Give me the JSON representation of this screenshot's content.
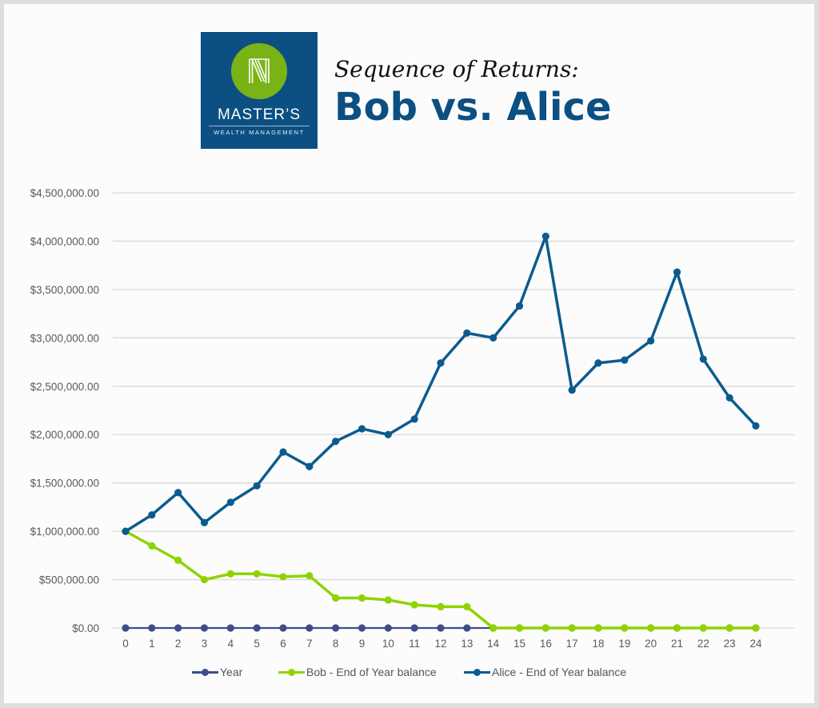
{
  "logo": {
    "name": "MASTER’S",
    "tagline": "WEALTH MANAGEMENT",
    "colors": {
      "background": "#0c4f82",
      "circle": "#7ab317"
    }
  },
  "header": {
    "subtitle": "Sequence of Returns:",
    "title": "Bob vs. Alice"
  },
  "chart_data": {
    "type": "line",
    "title": "Sequence of Returns: Bob vs. Alice",
    "xlabel": "",
    "ylabel": "",
    "x": [
      0,
      1,
      2,
      3,
      4,
      5,
      6,
      7,
      8,
      9,
      10,
      11,
      12,
      13,
      14,
      15,
      16,
      17,
      18,
      19,
      20,
      21,
      22,
      23,
      24
    ],
    "ylim": [
      0,
      4500000
    ],
    "yticks": [
      0,
      500000,
      1000000,
      1500000,
      2000000,
      2500000,
      3000000,
      3500000,
      4000000,
      4500000
    ],
    "ytick_labels": [
      "$0.00",
      "$500,000.00",
      "$1,000,000.00",
      "$1,500,000.00",
      "$2,000,000.00",
      "$2,500,000.00",
      "$3,000,000.00",
      "$3,500,000.00",
      "$4,000,000.00",
      "$4,500,000.00"
    ],
    "grid": true,
    "legend_position": "bottom",
    "series": [
      {
        "name": "Year",
        "color": "#3d4d8a",
        "values": [
          0,
          0,
          0,
          0,
          0,
          0,
          0,
          0,
          0,
          0,
          0,
          0,
          0,
          0,
          0,
          0,
          0,
          0,
          0,
          0,
          0,
          0,
          0,
          0,
          0
        ]
      },
      {
        "name": "Bob - End of Year balance",
        "color": "#8fd300",
        "values": [
          1000000,
          850000,
          700000,
          500000,
          560000,
          560000,
          530000,
          540000,
          310000,
          310000,
          290000,
          240000,
          220000,
          220000,
          0,
          0,
          0,
          0,
          0,
          0,
          0,
          0,
          0,
          0,
          0
        ]
      },
      {
        "name": "Alice - End of Year balance",
        "color": "#0c5b8f",
        "values": [
          1000000,
          1170000,
          1400000,
          1090000,
          1300000,
          1470000,
          1820000,
          1670000,
          1930000,
          2060000,
          2000000,
          2160000,
          2740000,
          3050000,
          3000000,
          3330000,
          4050000,
          2460000,
          2740000,
          2770000,
          2970000,
          3680000,
          2780000,
          2380000,
          2090000
        ]
      }
    ]
  }
}
